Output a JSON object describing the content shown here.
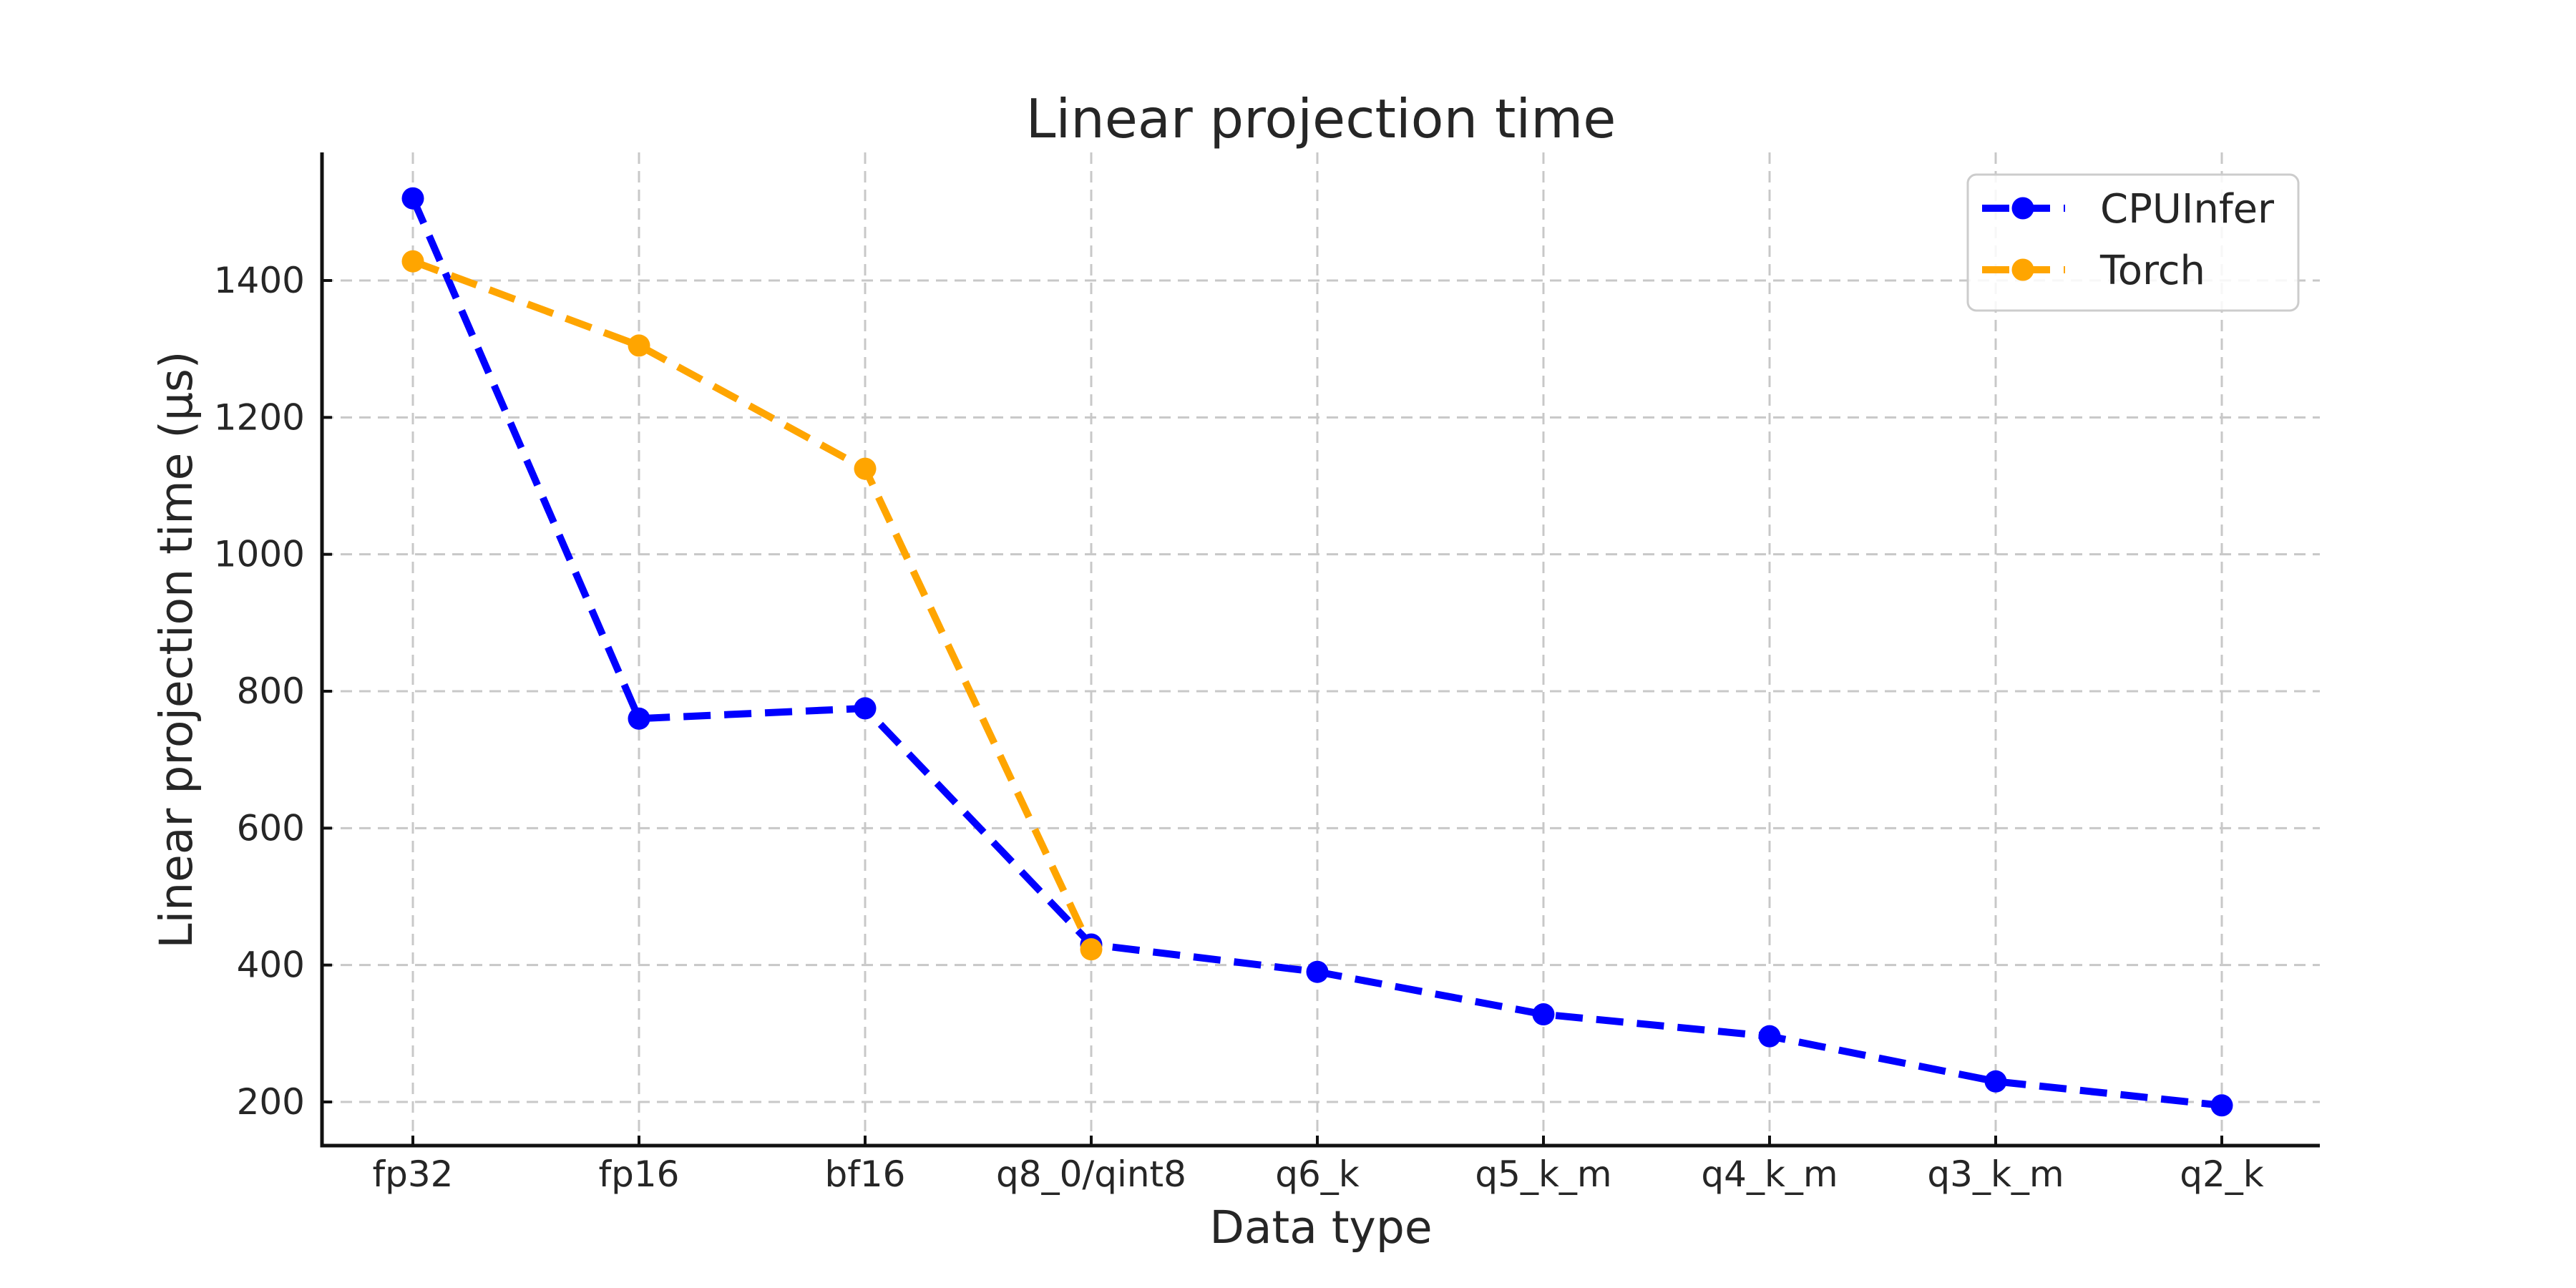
{
  "chart_data": {
    "type": "line",
    "title": "Linear projection time",
    "xlabel": "Data type",
    "ylabel": "Linear projection time (μs)",
    "categories": [
      "fp32",
      "fp16",
      "bf16",
      "q8_0/qint8",
      "q6_k",
      "q5_k_m",
      "q4_k_m",
      "q3_k_m",
      "q2_k"
    ],
    "series": [
      {
        "name": "CPUInfer",
        "color": "#0000ff",
        "marker": "circle",
        "linestyle": "dashed",
        "values": [
          1520,
          760,
          775,
          430,
          390,
          328,
          296,
          230,
          195
        ]
      },
      {
        "name": "Torch",
        "color": "#ffa500",
        "marker": "circle",
        "linestyle": "dashed",
        "values": [
          1428,
          1305,
          1125,
          423
        ]
      }
    ],
    "yticks": [
      200,
      400,
      600,
      800,
      1000,
      1200,
      1400
    ],
    "ylim": [
      130,
      1590
    ],
    "grid": true,
    "grid_style": "dashed",
    "legend_position": "upper right"
  },
  "appearance": {
    "background": "#ffffff",
    "grid_color": "#c8c8c8",
    "axis_color": "#111111",
    "text_color": "#262626",
    "legend_border_color": "#cccccc",
    "legend_background": "rgba(255,255,255,0.85)"
  }
}
